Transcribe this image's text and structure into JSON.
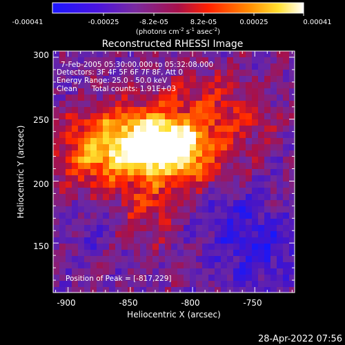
{
  "colorbar": {
    "tick_labels": [
      "-0.00041",
      "-0.00025",
      "-8.2e-05",
      "8.2e-05",
      "0.00025",
      "0.00041"
    ],
    "unit_label": "(photons cm",
    "unit_exp1": "-2",
    "unit_mid": " s",
    "unit_exp2": "-1",
    "unit_end": " asec",
    "unit_exp3": "-2",
    "unit_close": ")",
    "colors": [
      "#1c16ff",
      "#5a10c8",
      "#7a2aa0",
      "#b01030",
      "#ff2000",
      "#ff8a00",
      "#ffe030",
      "#ffffff"
    ]
  },
  "image": {
    "title": "Reconstructed RHESSI Image",
    "time_range": "7-Feb-2005 05:30:00.000 to 05:32:08.000",
    "detectors": "Detectors: 3F 4F 5F 6F 7F 8F, Att 0",
    "energy_range": "Energy Range: 25.0 - 50.0 keV",
    "clean": "Clean",
    "total_counts": "Total counts: 1.91E+03",
    "peak_position": "Position of Peak = [-817,229]",
    "peak": {
      "x": -817,
      "y": 229
    }
  },
  "axes": {
    "xlabel": "Heliocentric X (arcsec)",
    "ylabel": "Heliocentric Y (arcsec)",
    "x_ticks": [
      "-900",
      "-850",
      "-800",
      "-750"
    ],
    "y_ticks": [
      "300",
      "250",
      "200",
      "150"
    ],
    "xlim": [
      -912,
      -718
    ],
    "ylim": [
      110,
      305
    ]
  },
  "footer": {
    "timestamp": "28-Apr-2022 07:56"
  }
}
